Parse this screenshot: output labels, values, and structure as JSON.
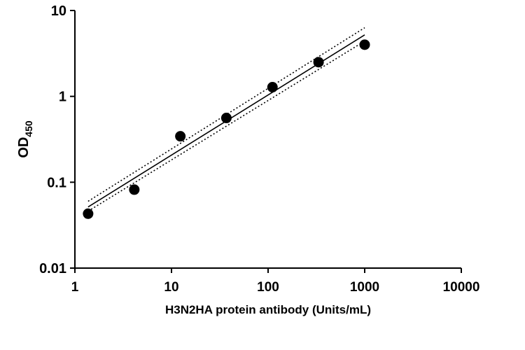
{
  "chart_data": {
    "type": "scatter",
    "xlabel": "H3N2HA protein antibody (Units/mL)",
    "ylabel": {
      "text": "OD",
      "subscript": "450"
    },
    "x": [
      1.37,
      4.12,
      12.35,
      37,
      111,
      333,
      1000
    ],
    "values": [
      0.043,
      0.082,
      0.343,
      0.56,
      1.28,
      2.5,
      4.0
    ],
    "color": "#000000",
    "lines": [
      {
        "x": [
          1.37,
          1000
        ],
        "values": [
          0.0515,
          5.2
        ],
        "style": "solid"
      },
      {
        "x": [
          1.37,
          1000
        ],
        "values": [
          0.06,
          6.3
        ],
        "style": "dotted"
      },
      {
        "x": [
          1.37,
          1000
        ],
        "values": [
          0.046,
          4.4
        ],
        "style": "dotted"
      }
    ],
    "xscale": "log",
    "yscale": "log",
    "xlim": [
      1,
      10000
    ],
    "ylim": [
      0.01,
      10
    ],
    "xticks": [
      1,
      10,
      100,
      1000,
      10000
    ],
    "yticks": [
      0.01,
      0.1,
      1,
      10
    ],
    "grid": false
  }
}
